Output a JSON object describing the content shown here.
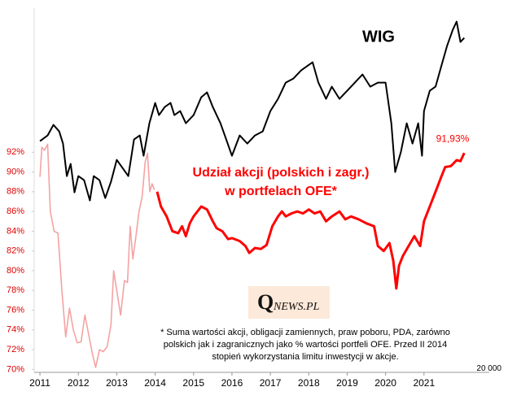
{
  "chart_data": {
    "type": "line",
    "logo": [
      "Q",
      "NEWS.PL"
    ],
    "footnote": [
      "* Suma wartości akcji, obligacji zamiennych, praw poboru, PDA, zarówno",
      "polskich jak i zagranicznych jako % wartości portfeli OFE. Przed II 2014",
      "stopień wykorzystania limitu inwestycji w akcje."
    ],
    "xlim": [
      2010.85,
      2022.7
    ],
    "xticks": [
      2011,
      2012,
      2013,
      2014,
      2015,
      2016,
      2017,
      2018,
      2019,
      2020,
      2021
    ],
    "ylim": [
      69.7,
      106.6
    ],
    "yticks": [
      {
        "value": 70,
        "label": "70%"
      },
      {
        "value": 72,
        "label": "72%"
      },
      {
        "value": 74,
        "label": "74%"
      },
      {
        "value": 76,
        "label": "76%"
      },
      {
        "value": 78,
        "label": "78%"
      },
      {
        "value": 80,
        "label": "80%"
      },
      {
        "value": 82,
        "label": "82%"
      },
      {
        "value": 84,
        "label": "84%"
      },
      {
        "value": 86,
        "label": "86%"
      },
      {
        "value": 88,
        "label": "88%"
      },
      {
        "value": 90,
        "label": "90%"
      },
      {
        "value": 92,
        "label": "92%"
      }
    ],
    "y2lim": [
      19700,
      75700
    ],
    "y2ticks": [
      {
        "value": 20000,
        "label": "20 000"
      }
    ],
    "series": [
      {
        "name": "WIG",
        "axis": "y2",
        "color": "#000000",
        "x": [
          2011.0,
          2011.2,
          2011.35,
          2011.5,
          2011.6,
          2011.7,
          2011.8,
          2011.9,
          2012.0,
          2012.15,
          2012.3,
          2012.4,
          2012.55,
          2012.7,
          2012.85,
          2013.0,
          2013.15,
          2013.3,
          2013.45,
          2013.6,
          2013.7,
          2013.85,
          2014.0,
          2014.1,
          2014.25,
          2014.4,
          2014.5,
          2014.65,
          2014.8,
          2015.0,
          2015.2,
          2015.35,
          2015.5,
          2015.7,
          2015.85,
          2016.0,
          2016.2,
          2016.4,
          2016.6,
          2016.8,
          2017.0,
          2017.2,
          2017.4,
          2017.6,
          2017.8,
          2017.95,
          2018.1,
          2018.25,
          2018.45,
          2018.6,
          2018.8,
          2019.0,
          2019.2,
          2019.4,
          2019.6,
          2019.8,
          2020.0,
          2020.15,
          2020.25,
          2020.4,
          2020.55,
          2020.7,
          2020.85,
          2020.95,
          2021.0,
          2021.15,
          2021.3,
          2021.45,
          2021.6,
          2021.75,
          2021.85,
          2021.95,
          2022.05
        ],
        "values": [
          55250,
          56125,
          57750,
          56750,
          54875,
          49875,
          51750,
          47375,
          49875,
          49250,
          46125,
          49875,
          49250,
          46500,
          49000,
          52375,
          51125,
          49875,
          55500,
          56125,
          53000,
          58000,
          61125,
          59250,
          60500,
          61125,
          59250,
          59875,
          58000,
          59250,
          62000,
          62750,
          60500,
          58000,
          55500,
          53000,
          56125,
          54875,
          56125,
          56750,
          59875,
          61750,
          64250,
          64875,
          66125,
          66750,
          67375,
          64250,
          61750,
          63625,
          61750,
          63000,
          64250,
          65500,
          63625,
          64250,
          64250,
          58000,
          50500,
          53625,
          58000,
          54875,
          58000,
          53000,
          59875,
          63000,
          63625,
          66750,
          69875,
          72375,
          73625,
          70500,
          71125
        ]
      },
      {
        "color": "#f4a3a3",
        "x": [
          2011.0,
          2011.05,
          2011.12,
          2011.2,
          2011.27,
          2011.37,
          2011.47,
          2011.57,
          2011.67,
          2011.77,
          2011.87,
          2011.97,
          2012.07,
          2012.17,
          2012.27,
          2012.37,
          2012.45,
          2012.55,
          2012.65,
          2012.75,
          2012.85,
          2012.92,
          2013.0,
          2013.1,
          2013.2,
          2013.28,
          2013.35,
          2013.42,
          2013.5,
          2013.58,
          2013.66,
          2013.74,
          2013.8,
          2013.86,
          2013.92,
          2013.98
        ],
        "values": [
          89.5,
          92.5,
          92.2,
          92.8,
          86,
          84,
          83.8,
          78,
          73.3,
          76.2,
          74,
          72.7,
          72.8,
          75.5,
          73.5,
          71.5,
          70.2,
          72,
          71.8,
          72.3,
          74.5,
          80,
          78,
          75.5,
          79,
          78.8,
          84.5,
          81.2,
          83.5,
          86,
          87.5,
          91,
          91.9,
          88,
          88.8,
          88.2
        ]
      },
      {
        "name_lines": [
          "Udział akcji (polskich i zagr.)",
          "w portfelach OFE*"
        ],
        "color": "#ff0000",
        "end_label": "91,93%",
        "x": [
          2014.05,
          2014.15,
          2014.3,
          2014.45,
          2014.6,
          2014.7,
          2014.8,
          2014.9,
          2015.0,
          2015.2,
          2015.35,
          2015.5,
          2015.6,
          2015.75,
          2015.9,
          2016.0,
          2016.2,
          2016.35,
          2016.45,
          2016.6,
          2016.75,
          2016.9,
          2017.05,
          2017.2,
          2017.3,
          2017.4,
          2017.55,
          2017.7,
          2017.85,
          2018.0,
          2018.15,
          2018.3,
          2018.45,
          2018.6,
          2018.8,
          2018.95,
          2019.1,
          2019.3,
          2019.5,
          2019.7,
          2019.8,
          2019.95,
          2020.1,
          2020.2,
          2020.28,
          2020.35,
          2020.45,
          2020.6,
          2020.75,
          2020.9,
          2021.0,
          2021.15,
          2021.3,
          2021.45,
          2021.55,
          2021.7,
          2021.85,
          2021.95,
          2022.05
        ],
        "values": [
          88,
          86.5,
          85.5,
          84,
          83.8,
          84.5,
          83.5,
          84.8,
          85.5,
          86.5,
          86.2,
          85,
          84.3,
          84,
          83.2,
          83.3,
          83,
          82.5,
          81.8,
          82.3,
          82.2,
          82.6,
          84.5,
          85.5,
          86,
          85.5,
          85.8,
          86,
          85.8,
          86.2,
          85.8,
          86,
          85,
          85.5,
          86,
          85.2,
          85.5,
          85.2,
          84.8,
          84.5,
          82.5,
          82,
          82.8,
          81,
          78.2,
          80.5,
          81.5,
          82.5,
          83.5,
          82.5,
          85,
          86.5,
          88,
          89.5,
          90.5,
          90.6,
          91.2,
          91.1,
          91.93
        ]
      }
    ]
  }
}
